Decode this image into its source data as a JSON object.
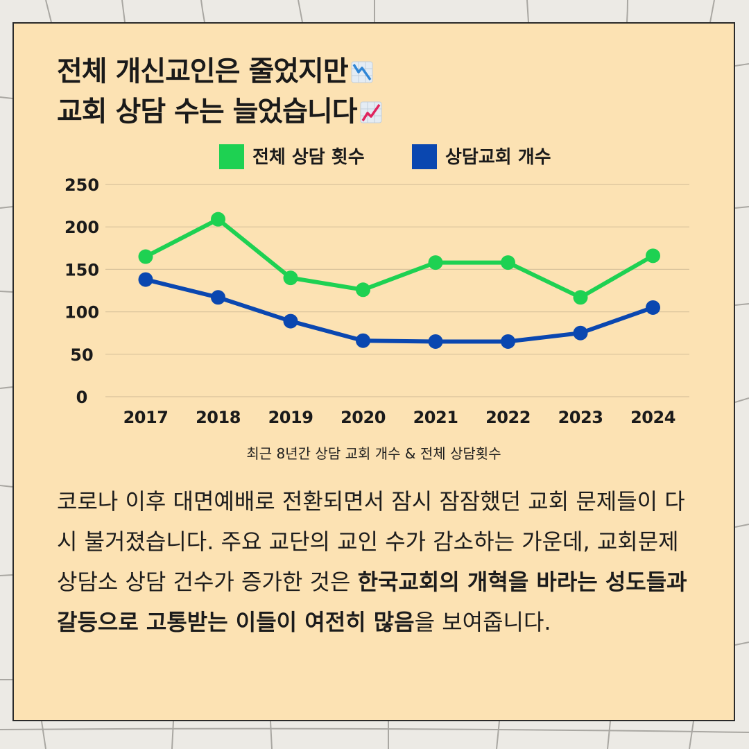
{
  "title": {
    "line1": "전체 개신교인은 줄었지만",
    "line2": "교회 상담 수는 늘었습니다",
    "line1_emoji": "chart-decreasing-icon",
    "line2_emoji": "chart-increasing-icon"
  },
  "chart_data": {
    "type": "line",
    "x": [
      "2017",
      "2018",
      "2019",
      "2020",
      "2021",
      "2022",
      "2023",
      "2024"
    ],
    "series": [
      {
        "name": "전체 상담 횟수",
        "color": "#1ed152",
        "values": [
          165,
          209,
          140,
          126,
          158,
          158,
          117,
          166
        ]
      },
      {
        "name": "상담교회 개수",
        "color": "#0a47b0",
        "values": [
          138,
          117,
          89,
          66,
          65,
          65,
          75,
          105
        ]
      }
    ],
    "yticks": [
      "0",
      "50",
      "100",
      "150",
      "200",
      "250"
    ],
    "ylim": [
      0,
      250
    ],
    "grid": true,
    "legend": "top-center",
    "caption": "최근 8년간 상담 교회 개수 & 전체 상담횟수"
  },
  "body": {
    "normal1": "코로나 이후 대면예배로 전환되면서 잠시 잠잠했던 교회 문제들이 다시 불거졌습니다. 주요 교단의 교인 수가 감소하는 가운데, 교회문제상담소 상담 건수가 증가한 것은 ",
    "bold": "한국교회의 개혁을 바라는 성도들과 갈등으로 고통받는 이들이 여전히 많음",
    "normal2": "을 보여줍니다."
  },
  "colors": {
    "background": "#eceae5",
    "card": "#fce2b3",
    "grid_line": "#d9c39c"
  }
}
